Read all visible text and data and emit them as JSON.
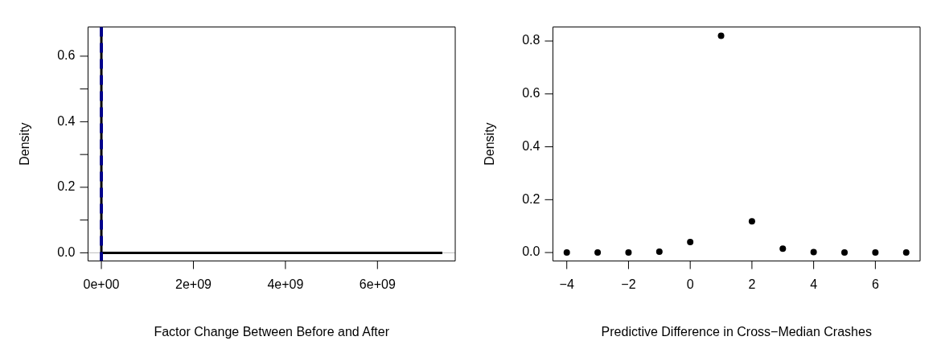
{
  "chart_data": [
    {
      "type": "line",
      "xlabel": "Factor Change Between Before and After",
      "ylabel": "Density",
      "xlim": [
        -290000000,
        7690000000
      ],
      "ylim": [
        -0.025,
        0.689
      ],
      "xticks": [
        {
          "value": 0,
          "label": "0e+00"
        },
        {
          "value": 2000000000,
          "label": "2e+09"
        },
        {
          "value": 4000000000,
          "label": "4e+09"
        },
        {
          "value": 6000000000,
          "label": "6e+09"
        }
      ],
      "yticks": [
        {
          "value": 0,
          "label": "0.0"
        },
        {
          "value": 0.1,
          "label": null
        },
        {
          "value": 0.2,
          "label": "0.2"
        },
        {
          "value": 0.3,
          "label": null
        },
        {
          "value": 0.4,
          "label": "0.4"
        },
        {
          "value": 0.5,
          "label": null
        },
        {
          "value": 0.6,
          "label": "0.6"
        }
      ],
      "series": [
        {
          "color": "#000000",
          "x": [
            0,
            0,
            0,
            7410000000
          ],
          "values": [
            0,
            0.67,
            0,
            0
          ]
        }
      ],
      "ref_lines": [
        {
          "axis": "y",
          "value": 0,
          "color": "#bebebe",
          "line_style": "solid"
        },
        {
          "axis": "x",
          "value": 0,
          "color": "#00008b",
          "line_style": "dashed"
        }
      ],
      "marker": "none",
      "grid": false,
      "legend": false
    },
    {
      "type": "scatter",
      "xlabel": "Predictive Difference in Cross−Median Crashes",
      "ylabel": "Density",
      "xlim": [
        -4.45,
        7.45
      ],
      "ylim": [
        -0.032,
        0.853
      ],
      "xticks": [
        {
          "value": -4,
          "label": "−4"
        },
        {
          "value": -2,
          "label": "−2"
        },
        {
          "value": 0,
          "label": "0"
        },
        {
          "value": 2,
          "label": "2"
        },
        {
          "value": 4,
          "label": "4"
        },
        {
          "value": 6,
          "label": "6"
        }
      ],
      "yticks": [
        {
          "value": 0,
          "label": "0.0"
        },
        {
          "value": 0.2,
          "label": "0.2"
        },
        {
          "value": 0.4,
          "label": "0.4"
        },
        {
          "value": 0.6,
          "label": "0.6"
        },
        {
          "value": 0.8,
          "label": "0.8"
        }
      ],
      "series": [
        {
          "color": "#000000",
          "x": [
            -4,
            -3,
            -2,
            -1,
            0,
            1,
            2,
            3,
            4,
            5,
            6,
            7
          ],
          "values": [
            0,
            0,
            0,
            0.003,
            0.04,
            0.82,
            0.118,
            0.015,
            0.002,
            0,
            0,
            0
          ]
        }
      ],
      "marker": "circle",
      "grid": false,
      "legend": false
    }
  ]
}
